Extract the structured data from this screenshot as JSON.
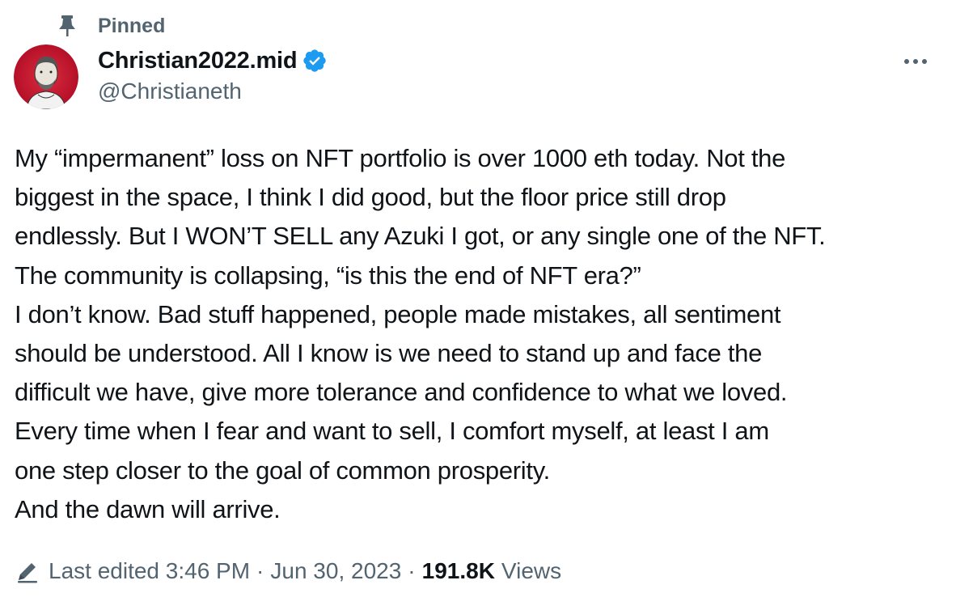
{
  "pinned": {
    "label": "Pinned",
    "icon": "pin-icon"
  },
  "author": {
    "display_name": "Christian2022.mid",
    "handle": "@Christianeth",
    "verified_icon": "verified-badge-icon",
    "verified_color": "#1d9bf0",
    "avatar_bg": "#c8102e"
  },
  "more_button": {
    "icon": "more-options-icon"
  },
  "tweet": {
    "lines": [
      "My “impermanent” loss on NFT portfolio is over 1000 eth today. Not the",
      "biggest in the space, I think I did good, but the floor price still drop",
      "endlessly. But I WON’T SELL any Azuki I got, or any single one of the NFT.",
      "The community is collapsing, “is this the end of NFT era?”",
      "I don’t know. Bad stuff happened, people made mistakes, all sentiment",
      "should be understood. All I know is we need to stand up and face the",
      "difficult we have, give more tolerance and confidence to what we loved.",
      "Every time when I fear and want to sell, I comfort myself, at least I am",
      "one step closer to the goal of common prosperity.",
      "And the dawn will arrive."
    ]
  },
  "meta": {
    "edit_icon": "pencil-icon",
    "last_edited": "Last edited 3:46 PM",
    "separator": "·",
    "date": "Jun 30, 2023",
    "views_count": "191.8K",
    "views_label": "Views"
  }
}
